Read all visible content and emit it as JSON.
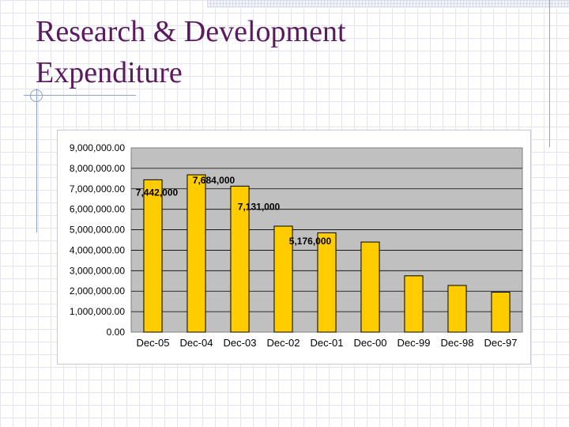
{
  "slide": {
    "title_line1": "Research & Development",
    "title_line2": "Expenditure"
  },
  "colors": {
    "bar": "#ffcc00",
    "plot_area": "#c0c0c0",
    "title": "#5b1a5e"
  },
  "chart_data": {
    "type": "bar",
    "title": "",
    "xlabel": "",
    "ylabel": "",
    "categories": [
      "Dec-05",
      "Dec-04",
      "Dec-03",
      "Dec-02",
      "Dec-01",
      "Dec-00",
      "Dec-99",
      "Dec-98",
      "Dec-97"
    ],
    "values": [
      7442000,
      7684000,
      7131000,
      5176000,
      4850000,
      4400000,
      2750000,
      2280000,
      1950000
    ],
    "ylim": [
      0,
      9000000
    ],
    "yticks": [
      "0.00",
      "1,000,000.00",
      "2,000,000.00",
      "3,000,000.00",
      "4,000,000.00",
      "5,000,000.00",
      "6,000,000.00",
      "7,000,000.00",
      "8,000,000.00",
      "9,000,000.00"
    ],
    "data_labels": [
      {
        "index": 0,
        "text": "7,442,000"
      },
      {
        "index": 1,
        "text": "7,684,000"
      },
      {
        "index": 2,
        "text": "7,131,000"
      },
      {
        "index": 3,
        "text": "5,176,000"
      }
    ],
    "grid": true,
    "legend": "none"
  }
}
